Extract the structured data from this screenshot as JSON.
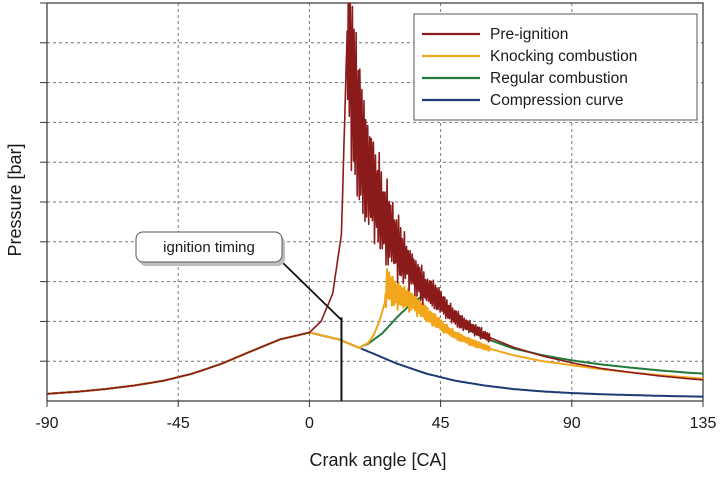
{
  "chart_data": {
    "type": "line",
    "title": "",
    "xlabel": "Crank angle  [CA]",
    "ylabel": "Pressure  [bar]",
    "xlim": [
      -90,
      135
    ],
    "ylim": [
      0,
      100
    ],
    "x_ticks": [
      -90,
      -45,
      0,
      45,
      90,
      135
    ],
    "x_tick_labels": [
      "-90",
      "-45",
      "0",
      "45",
      "90",
      "135"
    ],
    "y_grid_values": [
      10,
      20,
      30,
      40,
      50,
      60,
      70,
      80,
      90,
      100
    ],
    "grid": true,
    "legend_position": "top-right",
    "series": [
      {
        "name": "Pre-ignition",
        "color": "#8b1a1a",
        "base_series": "Compression curve",
        "deviation_start_x": 0,
        "peak_x": 13,
        "peak_y": 94,
        "oscillating": true,
        "x": [
          0,
          4,
          8,
          11,
          13,
          16,
          20,
          25,
          30,
          35,
          40,
          45,
          50,
          60,
          70,
          80,
          90,
          100,
          110,
          120,
          130,
          135
        ],
        "y": [
          17.2,
          20,
          27,
          42,
          94,
          72,
          58,
          47,
          39,
          33,
          28,
          25,
          21,
          16.5,
          13.5,
          11.3,
          9.6,
          8.2,
          7.2,
          6.3,
          5.6,
          5.3
        ]
      },
      {
        "name": "Knocking combustion",
        "color": "#f2a61c",
        "base_series": "Compression curve",
        "deviation_start_x": 18,
        "oscillating": true,
        "x": [
          18,
          20,
          22,
          24,
          26,
          26.5,
          28,
          30,
          35,
          40,
          45,
          50,
          60,
          70,
          80,
          90,
          100,
          110,
          120,
          130,
          135
        ],
        "y": [
          13.8,
          14.5,
          16.5,
          20,
          25,
          30,
          28,
          27,
          25,
          22,
          19,
          16.5,
          13.5,
          11.5,
          10,
          9,
          8,
          7.2,
          6.5,
          5.9,
          5.6
        ]
      },
      {
        "name": "Regular combustion",
        "color": "#1f7a3a",
        "base_series": "Compression curve",
        "deviation_start_x": 18,
        "oscillating": false,
        "x": [
          18,
          20,
          25,
          30,
          35,
          38,
          40,
          42,
          45,
          50,
          55,
          60,
          70,
          80,
          90,
          100,
          110,
          120,
          130,
          135
        ],
        "y": [
          13.8,
          14.3,
          17,
          21,
          24.5,
          26,
          26.5,
          26,
          24,
          20.5,
          17.7,
          15.8,
          13.2,
          11.5,
          10.2,
          9.2,
          8.4,
          7.7,
          7.1,
          6.9
        ]
      },
      {
        "name": "Compression curve",
        "color": "#1c3a73",
        "oscillating": false,
        "x": [
          -90,
          -80,
          -70,
          -60,
          -50,
          -40,
          -30,
          -20,
          -10,
          0,
          10,
          20,
          30,
          40,
          50,
          60,
          70,
          80,
          90,
          100,
          110,
          120,
          130,
          135
        ],
        "y": [
          1.8,
          2.3,
          3,
          3.9,
          5.1,
          6.9,
          9.4,
          12.5,
          15.5,
          17.2,
          15.5,
          12.5,
          9.4,
          6.9,
          5.1,
          3.9,
          3,
          2.4,
          2,
          1.7,
          1.5,
          1.3,
          1.15,
          1.1
        ]
      }
    ],
    "annotations": [
      {
        "text": "ignition timing",
        "x": 11,
        "line_y_top": 21
      }
    ]
  }
}
